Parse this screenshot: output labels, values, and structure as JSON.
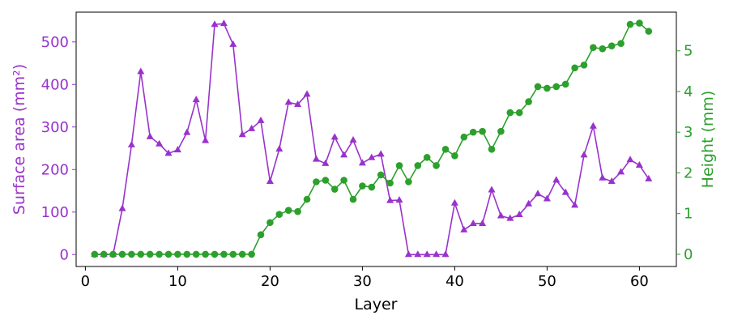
{
  "chart_data": {
    "type": "line",
    "xlabel": "Layer",
    "ylabel_left": "Surface area (mm²)",
    "ylabel_right": "Height (mm)",
    "xlim": [
      -1,
      64
    ],
    "ylim_left": [
      -28,
      570
    ],
    "ylim_right": [
      -0.3,
      5.95
    ],
    "xticks": [
      0,
      10,
      20,
      30,
      40,
      50,
      60
    ],
    "yticks_left": [
      0,
      100,
      200,
      300,
      400,
      500
    ],
    "yticks_right": [
      0,
      1,
      2,
      3,
      4,
      5
    ],
    "grid": false,
    "series": [
      {
        "axis": "left",
        "color": "#9932CC",
        "marker": "triangle",
        "x": [
          1,
          2,
          3,
          4,
          5,
          6,
          7,
          8,
          9,
          10,
          11,
          12,
          13,
          14,
          15,
          16,
          17,
          18,
          19,
          20,
          21,
          22,
          23,
          24,
          25,
          26,
          27,
          28,
          29,
          30,
          31,
          32,
          33,
          34,
          35,
          36,
          37,
          38,
          39,
          40,
          41,
          42,
          43,
          44,
          45,
          46,
          47,
          48,
          49,
          50,
          51,
          52,
          53,
          54,
          55,
          56,
          57,
          58,
          59,
          60,
          61
        ],
        "values": [
          0,
          0,
          0,
          108,
          258,
          430,
          277,
          260,
          238,
          246,
          287,
          364,
          268,
          541,
          543,
          494,
          282,
          296,
          315,
          172,
          248,
          358,
          353,
          377,
          224,
          214,
          276,
          234,
          269,
          215,
          228,
          236,
          127,
          128,
          0,
          0,
          0,
          0,
          0,
          121,
          58,
          73,
          73,
          152,
          91,
          85,
          94,
          119,
          143,
          131,
          175,
          146,
          116,
          234,
          302,
          180,
          172,
          194,
          223,
          210,
          178
        ]
      },
      {
        "axis": "right",
        "color": "#2CA02C",
        "marker": "circle",
        "x": [
          1,
          2,
          3,
          4,
          5,
          6,
          7,
          8,
          9,
          10,
          11,
          12,
          13,
          14,
          15,
          16,
          17,
          18,
          19,
          20,
          21,
          22,
          23,
          24,
          25,
          26,
          27,
          28,
          29,
          30,
          31,
          32,
          33,
          34,
          35,
          36,
          37,
          38,
          39,
          40,
          41,
          42,
          43,
          44,
          45,
          46,
          47,
          48,
          49,
          50,
          51,
          52,
          53,
          54,
          55,
          56,
          57,
          58,
          59,
          60,
          61
        ],
        "values": [
          0,
          0,
          0,
          0,
          0,
          0,
          0,
          0,
          0,
          0,
          0,
          0,
          0,
          0,
          0,
          0,
          0,
          0,
          0.48,
          0.78,
          0.98,
          1.08,
          1.05,
          1.35,
          1.78,
          1.82,
          1.6,
          1.82,
          1.35,
          1.68,
          1.65,
          1.95,
          1.75,
          2.18,
          1.78,
          2.18,
          2.38,
          2.18,
          2.58,
          2.42,
          2.88,
          3.0,
          3.02,
          2.58,
          3.02,
          3.48,
          3.48,
          3.75,
          4.12,
          4.08,
          4.12,
          4.18,
          4.58,
          4.65,
          5.08,
          5.05,
          5.12,
          5.18,
          5.65,
          5.68,
          5.48
        ]
      }
    ]
  }
}
